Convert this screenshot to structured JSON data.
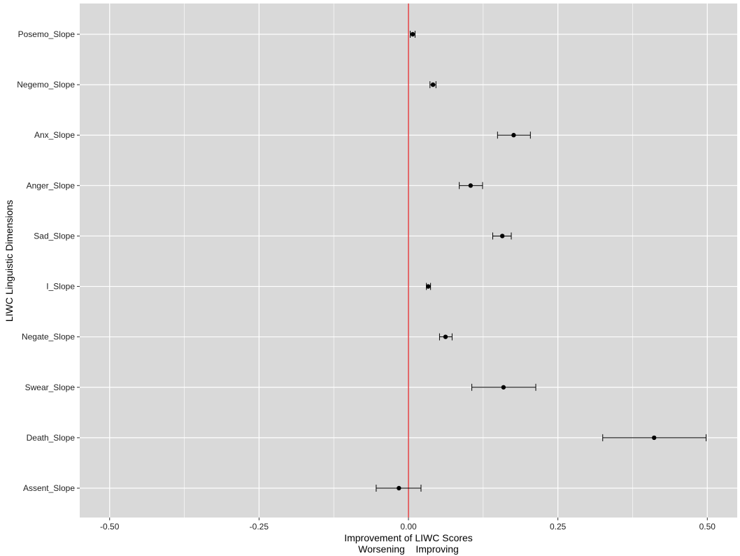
{
  "chart_data": {
    "type": "scatter",
    "orientation": "horizontal",
    "xlabel": "Improvement of LIWC Scores",
    "xlabel_sub": "Worsening    Improving",
    "ylabel": "LIWC Linguistic Dimensions",
    "xlim": [
      -0.55,
      0.55
    ],
    "x_ticks": [
      -0.5,
      -0.25,
      0.0,
      0.25,
      0.5
    ],
    "x_tick_labels": [
      "-0.50",
      "-0.25",
      "0.00",
      "0.25",
      "0.50"
    ],
    "reference_line": {
      "x": 0.0,
      "color": "#e41a1c"
    },
    "grid": true,
    "panel_background": "#d9d9d9",
    "point_color": "#000000",
    "categories": [
      "Posemo_Slope",
      "Negemo_Slope",
      "Anx_Slope",
      "Anger_Slope",
      "Sad_Slope",
      "I_Slope",
      "Negate_Slope",
      "Swear_Slope",
      "Death_Slope",
      "Assent_Slope"
    ],
    "points": [
      {
        "category": "Posemo_Slope",
        "estimate": 0.007,
        "lower": 0.003,
        "upper": 0.011
      },
      {
        "category": "Negemo_Slope",
        "estimate": 0.041,
        "lower": 0.036,
        "upper": 0.046
      },
      {
        "category": "Anx_Slope",
        "estimate": 0.176,
        "lower": 0.149,
        "upper": 0.204
      },
      {
        "category": "Anger_Slope",
        "estimate": 0.104,
        "lower": 0.085,
        "upper": 0.124
      },
      {
        "category": "Sad_Slope",
        "estimate": 0.157,
        "lower": 0.141,
        "upper": 0.172
      },
      {
        "category": "I_Slope",
        "estimate": 0.033,
        "lower": 0.03,
        "upper": 0.037
      },
      {
        "category": "Negate_Slope",
        "estimate": 0.062,
        "lower": 0.052,
        "upper": 0.073
      },
      {
        "category": "Swear_Slope",
        "estimate": 0.159,
        "lower": 0.106,
        "upper": 0.213
      },
      {
        "category": "Death_Slope",
        "estimate": 0.411,
        "lower": 0.325,
        "upper": 0.498
      },
      {
        "category": "Assent_Slope",
        "estimate": -0.016,
        "lower": -0.054,
        "upper": 0.021
      }
    ]
  }
}
